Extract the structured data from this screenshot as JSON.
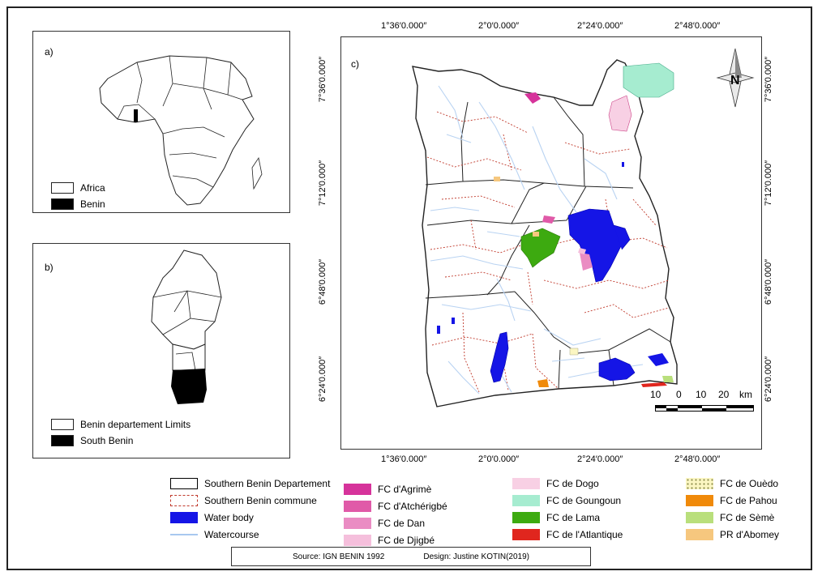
{
  "panels": {
    "a": {
      "label": "a)",
      "legend": [
        {
          "label": "Africa",
          "fill": "#ffffff"
        },
        {
          "label": "Benin",
          "fill": "#000000"
        }
      ]
    },
    "b": {
      "label": "b)",
      "legend": [
        {
          "label": "Benin departement Limits",
          "fill": "#ffffff"
        },
        {
          "label": "South Benin",
          "fill": "#000000"
        }
      ]
    },
    "c": {
      "label": "c)"
    }
  },
  "coordinates": {
    "longitudes": [
      "1°36′0.000″",
      "2°0′0.000″",
      "2°24′0.000″",
      "2°48′0.000″"
    ],
    "latitudes": [
      "7°36′0.000″",
      "7°12′0.000″",
      "6°48′0.000″",
      "6°24′0.000″"
    ]
  },
  "north_arrow": {
    "letter": "N"
  },
  "scale_bar": {
    "labels": [
      "10",
      "0",
      "10",
      "20"
    ],
    "unit": "km"
  },
  "legend": {
    "col1": [
      {
        "label": "Southern Benin Departement",
        "kind": "box",
        "color": "#000000"
      },
      {
        "label": "Southern Benin commune",
        "kind": "dashed",
        "color": "#c0392b"
      },
      {
        "label": "Water body",
        "kind": "fill",
        "color": "#1515e6"
      },
      {
        "label": "Watercourse",
        "kind": "line",
        "color": "#a8c8ef"
      }
    ],
    "col2": [
      {
        "label": "FC d'Agrimè",
        "color": "#d6339b"
      },
      {
        "label": "FC d'Atchérigbé",
        "color": "#e05aa8"
      },
      {
        "label": "FC de Dan",
        "color": "#ea8cc3"
      },
      {
        "label": "FC de Djigbé",
        "color": "#f5bfdc"
      }
    ],
    "col3": [
      {
        "label": "FC de Dogo",
        "color": "#f8d0e4"
      },
      {
        "label": "FC de Goungoun",
        "color": "#a6ecd0"
      },
      {
        "label": "FC  de Lama",
        "color": "#3daa10"
      },
      {
        "label": "FC de l'Atlantique",
        "color": "#e0261e"
      }
    ],
    "col4": [
      {
        "label": "FC de Ouèdo",
        "color": "#fbf6c2",
        "pattern": "dots"
      },
      {
        "label": "FC de Pahou",
        "color": "#f08a0a"
      },
      {
        "label": "FC de Sèmè",
        "color": "#b9df7c"
      },
      {
        "label": "PR d'Abomey",
        "color": "#f6c77e"
      }
    ]
  },
  "source": {
    "source_text": "Source: IGN BENIN 1992",
    "design_text": "Design: Justine KOTIN(2019)"
  }
}
